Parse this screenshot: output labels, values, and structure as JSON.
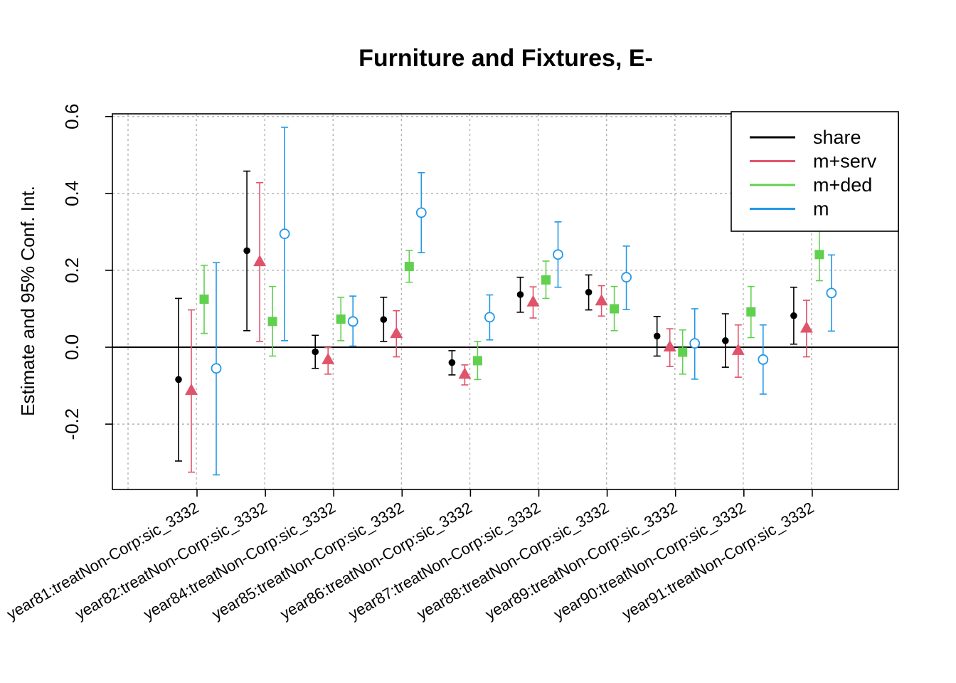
{
  "chart_data": {
    "type": "scatter",
    "title": "Furniture and Fixtures, E-",
    "xlabel": "",
    "ylabel": "Estimate and 95% Conf. Int.",
    "ylim": [
      -0.37,
      0.607
    ],
    "yticks": [
      -0.2,
      0.0,
      0.2,
      0.4,
      0.6
    ],
    "ytick_labels": [
      "-0.2",
      "0.0",
      "0.2",
      "0.4",
      "0.6"
    ],
    "grid": true,
    "legend_position": "top-right",
    "reference_line": 0,
    "categories": [
      "year81:treatNon-Corp:sic_3332",
      "year82:treatNon-Corp:sic_3332",
      "year84:treatNon-Corp:sic_3332",
      "year85:treatNon-Corp:sic_3332",
      "year86:treatNon-Corp:sic_3332",
      "year87:treatNon-Corp:sic_3332",
      "year88:treatNon-Corp:sic_3332",
      "year89:treatNon-Corp:sic_3332",
      "year90:treatNon-Corp:sic_3332",
      "year91:treatNon-Corp:sic_3332"
    ],
    "series": [
      {
        "name": "share",
        "color": "#000000",
        "marker": "filled-circle",
        "estimate": [
          -0.084,
          0.251,
          -0.012,
          0.072,
          -0.04,
          0.137,
          0.143,
          0.029,
          0.017,
          0.082
        ],
        "lower": [
          -0.296,
          0.043,
          -0.055,
          0.015,
          -0.072,
          0.091,
          0.097,
          -0.023,
          -0.052,
          0.008
        ],
        "upper": [
          0.127,
          0.458,
          0.031,
          0.13,
          -0.009,
          0.182,
          0.188,
          0.08,
          0.087,
          0.156
        ]
      },
      {
        "name": "m+serv",
        "color": "#DF536B",
        "marker": "filled-triangle",
        "estimate": [
          -0.113,
          0.222,
          -0.033,
          0.035,
          -0.071,
          0.117,
          0.12,
          0.0,
          -0.009,
          0.049
        ],
        "lower": [
          -0.325,
          0.015,
          -0.07,
          -0.025,
          -0.098,
          0.076,
          0.081,
          -0.05,
          -0.078,
          -0.025
        ],
        "upper": [
          0.097,
          0.428,
          -0.001,
          0.095,
          -0.046,
          0.157,
          0.16,
          0.048,
          0.058,
          0.122
        ]
      },
      {
        "name": "m+ded",
        "color": "#61D04F",
        "marker": "filled-square",
        "estimate": [
          0.125,
          0.067,
          0.073,
          0.21,
          -0.035,
          0.175,
          0.1,
          -0.013,
          0.092,
          0.241
        ],
        "lower": [
          0.036,
          -0.023,
          0.017,
          0.169,
          -0.084,
          0.127,
          0.043,
          -0.07,
          0.025,
          0.173
        ],
        "upper": [
          0.213,
          0.158,
          0.13,
          0.252,
          0.015,
          0.224,
          0.158,
          0.045,
          0.158,
          0.31
        ]
      },
      {
        "name": "m",
        "color": "#2297E6",
        "marker": "open-circle",
        "estimate": [
          -0.055,
          0.295,
          0.067,
          0.35,
          0.078,
          0.241,
          0.182,
          0.01,
          -0.032,
          0.141
        ],
        "lower": [
          -0.332,
          0.017,
          0.003,
          0.246,
          0.019,
          0.156,
          0.098,
          -0.083,
          -0.122,
          0.042
        ],
        "upper": [
          0.22,
          0.572,
          0.133,
          0.454,
          0.136,
          0.326,
          0.263,
          0.1,
          0.058,
          0.24
        ]
      }
    ]
  }
}
